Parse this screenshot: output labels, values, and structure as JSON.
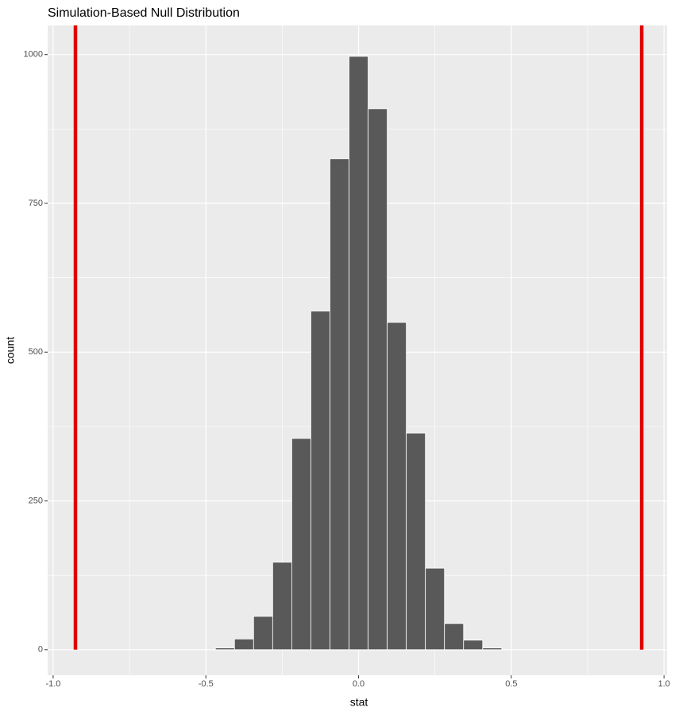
{
  "chart_data": {
    "type": "histogram",
    "title": "Simulation-Based Null Distribution",
    "x_label": "stat",
    "y_label": "count",
    "bins": [
      -0.46875,
      -0.40625,
      -0.34375,
      -0.28125,
      -0.21875,
      -0.15625,
      -0.09375,
      -0.03125,
      0.03125,
      0.09375,
      0.15625,
      0.21875,
      0.28125,
      0.34375,
      0.40625,
      0.46875
    ],
    "counts": [
      3,
      18,
      56,
      147,
      355,
      569,
      825,
      997,
      909,
      550,
      364,
      137,
      44,
      16,
      3
    ],
    "color": "#595959",
    "edge_color": "#ffffff",
    "vlines": [
      -0.927,
      0.927
    ],
    "vline_color": "#e00000",
    "xlim": [
      -1.018,
      1.01
    ],
    "xticks": [
      {
        "value": -1.0,
        "label": "-1.0"
      },
      -0.5,
      {
        "value": 0.0,
        "label": "0.0"
      },
      0.5,
      {
        "value": 1.0,
        "label": "1.0"
      }
    ],
    "xminor": [
      -0.75,
      -0.25,
      0.25,
      0.75
    ],
    "ylim": [
      -43,
      1049
    ],
    "yticks": [
      0,
      250,
      500,
      750,
      1000
    ],
    "yminor": [
      125,
      375,
      625,
      875
    ],
    "grid": true
  }
}
